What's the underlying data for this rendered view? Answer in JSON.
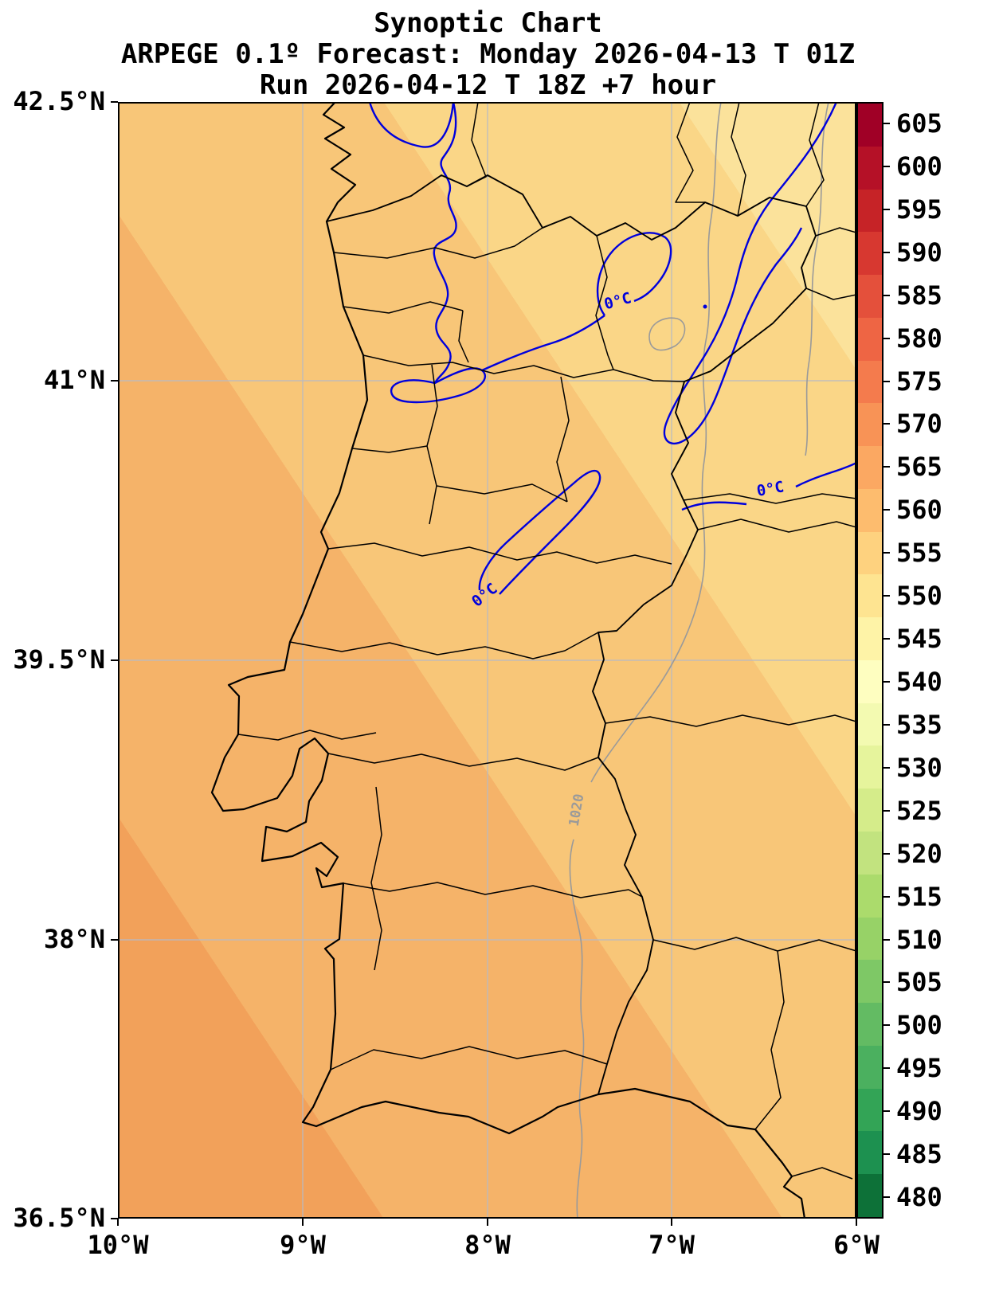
{
  "title": {
    "line1": "Synoptic Chart",
    "line2": "ARPEGE 0.1º Forecast: Monday 2026-04-13 T 01Z",
    "line3": "Run 2026-04-12 T 18Z +7 hour"
  },
  "chart_data": {
    "type": "heatmap",
    "title": "Synoptic Chart",
    "subtitle": "ARPEGE 0.1º Forecast: Monday 2026-04-13 T 01Z",
    "run_line": "Run 2026-04-12 T 18Z +7 hour",
    "x_axis": {
      "ticks": [
        "10°W",
        "9°W",
        "8°W",
        "7°W",
        "6°W"
      ],
      "range_degrees": [
        -10,
        -6
      ],
      "grid": true
    },
    "y_axis": {
      "ticks": [
        "42.5°N",
        "41°N",
        "39.5°N",
        "38°N",
        "36.5°N"
      ],
      "range_degrees": [
        36.5,
        42.5
      ],
      "grid": true
    },
    "colorbar": {
      "orientation": "vertical",
      "position": "right",
      "tick_values": [
        480,
        485,
        490,
        495,
        500,
        505,
        510,
        515,
        520,
        525,
        530,
        535,
        540,
        545,
        550,
        555,
        560,
        565,
        570,
        575,
        580,
        585,
        590,
        595,
        600,
        605
      ],
      "colors": [
        "#0d7138",
        "#1d9150",
        "#33a456",
        "#4bb05f",
        "#63bb63",
        "#7ec866",
        "#97d267",
        "#abdb6c",
        "#c2e37f",
        "#d5ec8a",
        "#e6f49c",
        "#f3fab1",
        "#fefec0",
        "#fef3a7",
        "#fee491",
        "#fed27f",
        "#fdbc6e",
        "#fba862",
        "#f89356",
        "#f47b4d",
        "#ee6544",
        "#e4503b",
        "#d73830",
        "#c62327",
        "#b51127",
        "#a00026"
      ]
    },
    "fill_bands": [
      {
        "value": 550,
        "color": "#fbe29b",
        "location": "northeast corner"
      },
      {
        "value": 555,
        "color": "#fad687",
        "location": "upper right"
      },
      {
        "value": 560,
        "color": "#f8c678",
        "location": "central diagonal"
      },
      {
        "value": 565,
        "color": "#f5b369",
        "location": "lower left / ocean"
      },
      {
        "value": 570,
        "color": "#f2a15a",
        "location": "southwest corner"
      }
    ],
    "contour_labels": {
      "isotherm": "0°C",
      "isobar": "1020"
    },
    "contours": [
      {
        "name": "zero-degree-isotherm",
        "label": "0°C",
        "color": "#0000dd",
        "label_count": 3
      },
      {
        "name": "isobar-1020",
        "label": "1020",
        "color": "#9a9a9a",
        "label_count": 1
      }
    ],
    "map_colors": {
      "coastline": "#000000",
      "boundaries": "#000000",
      "grid": "#b6bac6",
      "frame": "#000000"
    }
  }
}
